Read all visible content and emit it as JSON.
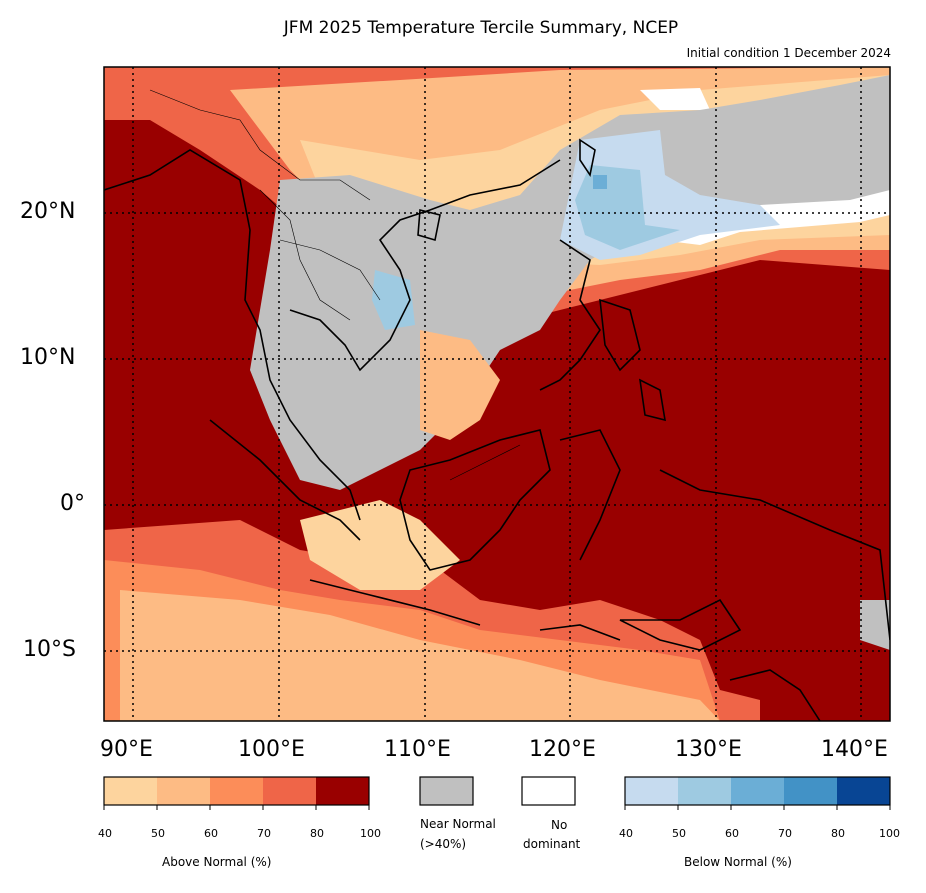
{
  "title": "JFM 2025 Temperature Tercile Summary, NCEP",
  "subtitle": "Initial condition 1 December 2024",
  "lat_labels": [
    "20°N",
    "10°N",
    "0°",
    "10°S"
  ],
  "lon_labels": [
    "90°E",
    "100°E",
    "110°E",
    "120°E",
    "130°E",
    "140°E"
  ],
  "legend": {
    "above": {
      "label": "Above Normal (%)",
      "ticks": [
        "40",
        "50",
        "60",
        "70",
        "80",
        "100"
      ],
      "colors": [
        "#fdd49e",
        "#fdbb84",
        "#fc8d59",
        "#ef6548",
        "#990000"
      ]
    },
    "near": {
      "label_line1": "Near Normal",
      "label_line2": "(>40%)",
      "color": "#c0c0c0"
    },
    "none": {
      "label_line1": "No",
      "label_line2": "dominant",
      "color": "#ffffff"
    },
    "below": {
      "label": "Below Normal (%)",
      "ticks": [
        "40",
        "50",
        "60",
        "70",
        "80",
        "100"
      ],
      "colors": [
        "#c6dbef",
        "#9ecae1",
        "#6baed6",
        "#4292c6",
        "#084594"
      ]
    }
  }
}
